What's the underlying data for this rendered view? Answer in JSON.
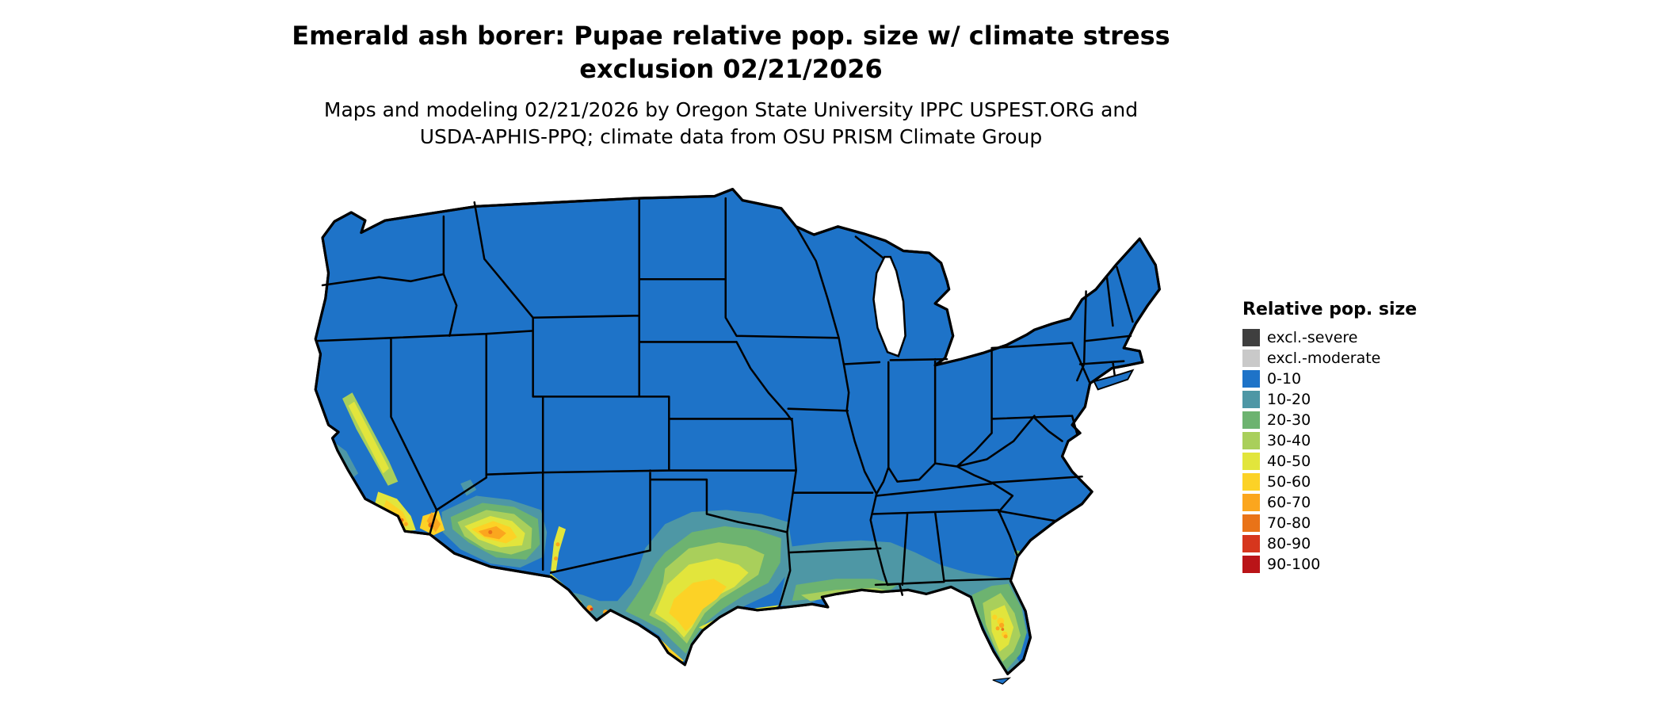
{
  "header": {
    "title_line1": "Emerald ash borer: Pupae relative pop. size w/ climate stress",
    "title_line2": "exclusion 02/21/2026",
    "subtitle_line1": "Maps and modeling 02/21/2026 by Oregon State University IPPC USPEST.ORG and",
    "subtitle_line2": "USDA-APHIS-PPQ; climate data from OSU PRISM Climate Group"
  },
  "legend": {
    "title": "Relative pop. size",
    "items": [
      {
        "label": "excl.-severe",
        "color": "#3f3f3f"
      },
      {
        "label": "excl.-moderate",
        "color": "#c9c9c9"
      },
      {
        "label": "0-10",
        "color": "#1e73c8"
      },
      {
        "label": "10-20",
        "color": "#4e97a5"
      },
      {
        "label": "20-30",
        "color": "#6db370"
      },
      {
        "label": "30-40",
        "color": "#a9cf5b"
      },
      {
        "label": "40-50",
        "color": "#e2e53c"
      },
      {
        "label": "50-60",
        "color": "#fcd226"
      },
      {
        "label": "60-70",
        "color": "#fba61e"
      },
      {
        "label": "70-80",
        "color": "#e97318"
      },
      {
        "label": "80-90",
        "color": "#d6361d"
      },
      {
        "label": "90-100",
        "color": "#ba1418"
      }
    ]
  },
  "map": {
    "region": "Continental United States",
    "base_category": "0-10",
    "high_population_areas": "southern Texas, Rio Grande valley, gulf coast, Florida peninsula, southern Arizona, southern California"
  },
  "colors": {
    "border": "#000000",
    "water": "#ffffff",
    "background": "#ffffff"
  }
}
